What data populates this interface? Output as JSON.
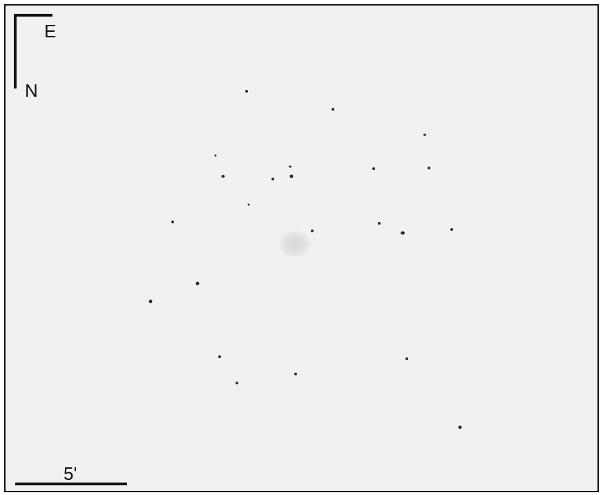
{
  "compass": {
    "east_label": "E",
    "north_label": "N"
  },
  "scale_bar": {
    "label": "5'"
  },
  "colors": {
    "background": "#f1f1f1",
    "stars": "#2a2a2a",
    "frame": "#111111"
  }
}
